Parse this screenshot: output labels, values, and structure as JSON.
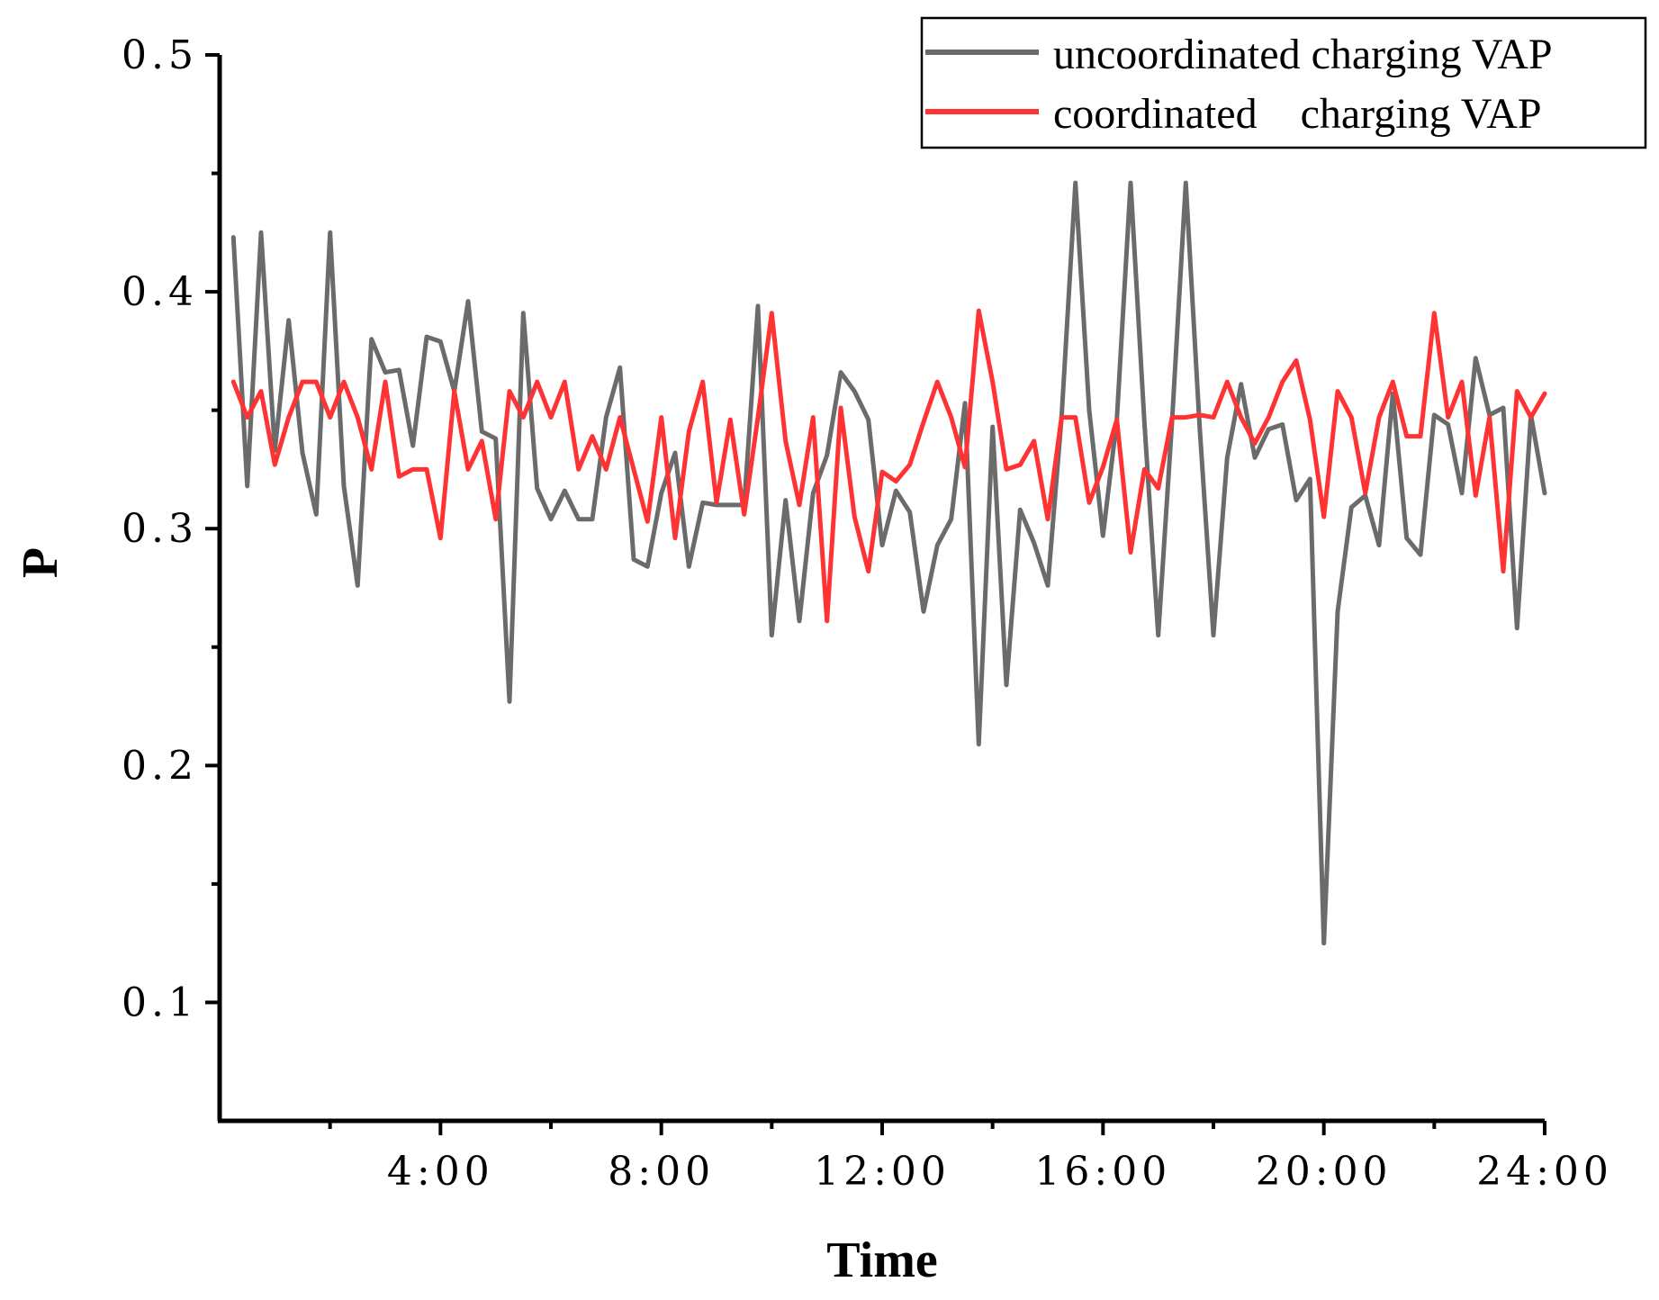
{
  "chart_data": {
    "type": "line",
    "title": "",
    "xlabel": "Time",
    "ylabel": "P",
    "xlim": [
      0,
      24
    ],
    "ylim": [
      0.05,
      0.5
    ],
    "yticks": [
      {
        "value": 0.1,
        "label": "0.1"
      },
      {
        "value": 0.2,
        "label": "0.2"
      },
      {
        "value": 0.3,
        "label": "0.3"
      },
      {
        "value": 0.4,
        "label": "0.4"
      },
      {
        "value": 0.5,
        "label": "0.5"
      }
    ],
    "yminor": [
      0.15,
      0.25,
      0.35,
      0.45
    ],
    "xticks": [
      {
        "value": 4,
        "label": "4:00"
      },
      {
        "value": 8,
        "label": "8:00"
      },
      {
        "value": 12,
        "label": "12:00"
      },
      {
        "value": 16,
        "label": "16:00"
      },
      {
        "value": 20,
        "label": "20:00"
      },
      {
        "value": 24,
        "label": "24:00"
      }
    ],
    "xminor": [
      2,
      6,
      10,
      14,
      18,
      22
    ],
    "legend_position": "top-right",
    "series": [
      {
        "name": "uncoordinated charging VAP",
        "color": "#6b6b6b",
        "x_step": 0.25,
        "values": [
          0.423,
          0.318,
          0.425,
          0.333,
          0.388,
          0.332,
          0.306,
          0.425,
          0.318,
          0.276,
          0.38,
          0.366,
          0.367,
          0.335,
          0.381,
          0.379,
          0.358,
          0.396,
          0.341,
          0.338,
          0.227,
          0.391,
          0.317,
          0.304,
          0.316,
          0.304,
          0.304,
          0.347,
          0.368,
          0.287,
          0.284,
          0.315,
          0.332,
          0.284,
          0.311,
          0.31,
          0.31,
          0.31,
          0.394,
          0.255,
          0.312,
          0.261,
          0.315,
          0.331,
          0.366,
          0.358,
          0.346,
          0.293,
          0.316,
          0.307,
          0.265,
          0.293,
          0.304,
          0.353,
          0.209,
          0.343,
          0.234,
          0.308,
          0.294,
          0.276,
          0.347,
          0.446,
          0.35,
          0.297,
          0.346,
          0.446,
          0.345,
          0.255,
          0.345,
          0.446,
          0.343,
          0.255,
          0.33,
          0.361,
          0.33,
          0.342,
          0.344,
          0.312,
          0.321,
          0.125,
          0.265,
          0.309,
          0.314,
          0.293,
          0.357,
          0.296,
          0.289,
          0.348,
          0.344,
          0.315,
          0.372,
          0.348,
          0.351,
          0.258,
          0.348,
          0.315
        ]
      },
      {
        "name": "coordinated    charging VAP",
        "color": "#ff3333",
        "x_step": 0.25,
        "values": [
          0.362,
          0.347,
          0.358,
          0.327,
          0.347,
          0.362,
          0.362,
          0.347,
          0.362,
          0.347,
          0.325,
          0.362,
          0.322,
          0.325,
          0.325,
          0.296,
          0.358,
          0.325,
          0.337,
          0.304,
          0.358,
          0.347,
          0.362,
          0.347,
          0.362,
          0.325,
          0.339,
          0.325,
          0.347,
          0.325,
          0.303,
          0.347,
          0.296,
          0.341,
          0.362,
          0.311,
          0.346,
          0.306,
          0.347,
          0.391,
          0.337,
          0.31,
          0.347,
          0.261,
          0.351,
          0.305,
          0.282,
          0.324,
          0.32,
          0.327,
          0.345,
          0.362,
          0.347,
          0.326,
          0.392,
          0.362,
          0.325,
          0.327,
          0.337,
          0.304,
          0.347,
          0.347,
          0.311,
          0.326,
          0.346,
          0.29,
          0.325,
          0.317,
          0.347,
          0.347,
          0.348,
          0.347,
          0.362,
          0.347,
          0.336,
          0.347,
          0.362,
          0.371,
          0.346,
          0.305,
          0.358,
          0.347,
          0.315,
          0.347,
          0.362,
          0.339,
          0.339,
          0.391,
          0.347,
          0.362,
          0.314,
          0.347,
          0.282,
          0.358,
          0.347,
          0.357
        ]
      }
    ]
  }
}
